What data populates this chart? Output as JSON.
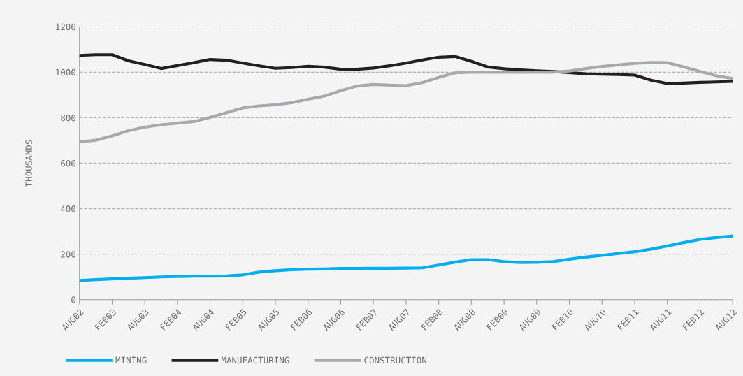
{
  "chart_data": {
    "type": "line",
    "ylabel": "THOUSANDS",
    "categories": [
      "AUG02",
      null,
      "FEB03",
      null,
      "AUG03",
      null,
      "FEB04",
      null,
      "AUG04",
      null,
      "FEB05",
      null,
      "AUG05",
      null,
      "FEB06",
      null,
      "AUG06",
      null,
      "FEB07",
      null,
      "AUG07",
      null,
      "FEB08",
      null,
      "AUG08",
      null,
      "FEB09",
      null,
      "AUG09",
      null,
      "FEB10",
      null,
      "AUG10",
      null,
      "FEB11",
      null,
      "AUG11",
      null,
      "FEB12",
      null,
      "AUG12"
    ],
    "series": [
      {
        "name": "MINING",
        "color": "#00aeef",
        "values": [
          84,
          88,
          91,
          94,
          97,
          100,
          102,
          103,
          103,
          104,
          109,
          121,
          127,
          132,
          134,
          135,
          137,
          137,
          138,
          138,
          139,
          140,
          152,
          165,
          176,
          176,
          167,
          163,
          164,
          167,
          178,
          187,
          195,
          203,
          211,
          222,
          236,
          251,
          265,
          273,
          280
        ]
      },
      {
        "name": "MANUFACTURING",
        "color": "#231f20",
        "values": [
          1074,
          1077,
          1077,
          1050,
          1034,
          1016,
          1029,
          1042,
          1056,
          1053,
          1040,
          1028,
          1017,
          1020,
          1026,
          1022,
          1013,
          1013,
          1018,
          1028,
          1040,
          1054,
          1066,
          1069,
          1048,
          1023,
          1015,
          1010,
          1006,
          1003,
          998,
          993,
          991,
          990,
          987,
          965,
          950,
          952,
          955,
          957,
          960
        ]
      },
      {
        "name": "CONSTRUCTION",
        "color": "#a7a9ac",
        "values": [
          693,
          701,
          720,
          743,
          758,
          769,
          776,
          783,
          801,
          822,
          843,
          852,
          857,
          866,
          881,
          895,
          919,
          939,
          946,
          943,
          941,
          954,
          977,
          997,
          1000,
          1000,
          1000,
          1000,
          1000,
          1000,
          1005,
          1016,
          1025,
          1032,
          1039,
          1043,
          1042,
          1023,
          1003,
          984,
          972
        ]
      }
    ],
    "ylim": [
      0,
      1200
    ],
    "yticks": [
      0,
      200,
      400,
      600,
      800,
      1000,
      1200
    ],
    "grid": "y",
    "legend": "bottom",
    "marker": "none",
    "line_style": "solid"
  }
}
